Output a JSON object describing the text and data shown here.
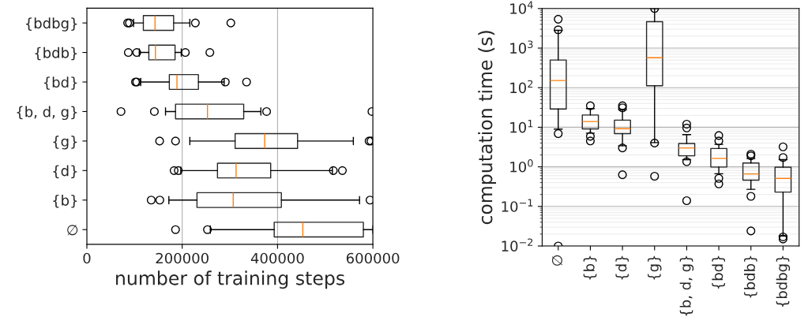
{
  "chart_data": [
    {
      "type": "box",
      "orientation": "horizontal",
      "xlabel": "number of training steps",
      "categories": [
        "{bdbg}",
        "{bdb}",
        "{bd}",
        "{b, d, g}",
        "{g}",
        "{d}",
        "{b}",
        "∅"
      ],
      "boxes": [
        {
          "low": 98000,
          "q1": 118500,
          "median": 143000,
          "q3": 182000,
          "high": 216000,
          "outliers": [
            85500,
            89300,
            227600,
            302000
          ]
        },
        {
          "low": 110000,
          "q1": 130000,
          "median": 143800,
          "q3": 185000,
          "high": 198000,
          "outliers": [
            87000,
            104700,
            206600,
            258000
          ]
        },
        {
          "low": 113000,
          "q1": 173000,
          "median": 189000,
          "q3": 234000,
          "high": 288000,
          "outliers": [
            102000,
            104700,
            290400,
            335000
          ]
        },
        {
          "low": 165000,
          "q1": 186000,
          "median": 253000,
          "q3": 329000,
          "high": 365000,
          "outliers": [
            71600,
            141600,
            377000,
            598000
          ]
        },
        {
          "low": 216000,
          "q1": 311000,
          "median": 373000,
          "q3": 442000,
          "high": 559000,
          "outliers": [
            152600,
            186000,
            592000,
            596000
          ]
        },
        {
          "low": 197000,
          "q1": 274000,
          "median": 313000,
          "q3": 385600,
          "high": 515000,
          "outliers": [
            183000,
            191800,
            517000,
            536000
          ]
        },
        {
          "low": 172000,
          "q1": 231000,
          "median": 307000,
          "q3": 408000,
          "high": 572000,
          "outliers": [
            135000,
            153000,
            594000
          ]
        },
        {
          "low": 259000,
          "q1": 393000,
          "median": 453000,
          "q3": 580000,
          "high": 600000,
          "outliers": [
            186000,
            253000
          ]
        }
      ],
      "xlim": [
        0,
        600000
      ],
      "xticks": [
        0,
        200000,
        400000,
        600000
      ],
      "grid": "x"
    },
    {
      "type": "box",
      "log": "y",
      "ylabel": "computation time (s)",
      "categories": [
        "∅",
        "{b}",
        "{d}",
        "{g}",
        "{b, d, g}",
        "{bd}",
        "{bdb}",
        "{bdbg}"
      ],
      "boxes": [
        {
          "low": 9.0,
          "q1": 29,
          "median": 152,
          "q3": 500,
          "high": 2800,
          "outliers": [
            0.01,
            6.9,
            2900,
            5370
          ]
        },
        {
          "low": 7.1,
          "q1": 9.1,
          "median": 14,
          "q3": 20.4,
          "high": 29.6,
          "outliers": [
            4.5,
            5.9,
            35
          ]
        },
        {
          "low": 3.4,
          "q1": 6.9,
          "median": 9.2,
          "q3": 15.1,
          "high": 27.5,
          "outliers": [
            0.63,
            3.0,
            31,
            35
          ]
        },
        {
          "low": 4.1,
          "q1": 112,
          "median": 570,
          "q3": 4650,
          "high": 10000,
          "outliers": [
            0.58,
            4.0,
            10000
          ]
        },
        {
          "low": 1.52,
          "q1": 1.9,
          "median": 3.0,
          "q3": 3.9,
          "high": 6.5,
          "outliers": [
            0.14,
            1.35,
            9.6,
            12
          ]
        },
        {
          "low": 0.67,
          "q1": 0.99,
          "median": 1.64,
          "q3": 2.9,
          "high": 3.7,
          "outliers": [
            0.37,
            0.51,
            4.5,
            6.2
          ]
        },
        {
          "low": 0.27,
          "q1": 0.46,
          "median": 0.66,
          "q3": 1.25,
          "high": 1.62,
          "outliers": [
            0.024,
            0.18,
            1.9,
            2.1
          ]
        },
        {
          "low": 0.018,
          "q1": 0.23,
          "median": 0.51,
          "q3": 0.98,
          "high": 1.52,
          "outliers": [
            0.015,
            0.017,
            1.72,
            3.2
          ]
        }
      ],
      "ylim": [
        0.01,
        10000
      ],
      "yticks": [
        {
          "value": 0.01,
          "label": "10$^{−2}$"
        },
        {
          "value": 0.1,
          "label": "10$^{−1}$"
        },
        {
          "value": 1,
          "label": "10$^{0}$"
        },
        {
          "value": 10,
          "label": "10$^{1}$"
        },
        {
          "value": 100,
          "label": "10$^{2}$"
        },
        {
          "value": 1000,
          "label": "10$^{3}$"
        },
        {
          "value": 10000,
          "label": "10$^{4}$"
        }
      ],
      "grid": "y"
    }
  ]
}
